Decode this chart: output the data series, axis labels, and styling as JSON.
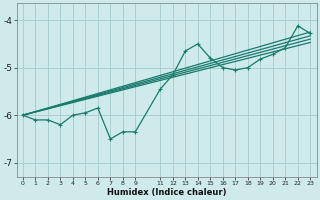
{
  "background_color": "#ceeaea",
  "grid_color": "#aacfcf",
  "line_color": "#1a7a6e",
  "xlabel": "Humidex (Indice chaleur)",
  "ylim": [
    -7.3,
    -3.65
  ],
  "xlim": [
    -0.5,
    23.5
  ],
  "yticks": [
    -7,
    -6,
    -5,
    -4
  ],
  "xtick_positions": [
    0,
    1,
    2,
    3,
    4,
    5,
    6,
    7,
    8,
    9,
    11,
    12,
    13,
    14,
    15,
    16,
    17,
    18,
    19,
    20,
    21,
    22,
    23
  ],
  "xtick_labels": [
    "0",
    "1",
    "2",
    "3",
    "4",
    "5",
    "6",
    "7",
    "8",
    "9",
    "11",
    "12",
    "13",
    "14",
    "15",
    "16",
    "17",
    "18",
    "19",
    "20",
    "21",
    "22",
    "23"
  ],
  "main_series": [
    [
      0,
      -6.0
    ],
    [
      1,
      -6.1
    ],
    [
      2,
      -6.1
    ],
    [
      3,
      -6.2
    ],
    [
      4,
      -6.0
    ],
    [
      5,
      -5.95
    ],
    [
      6,
      -5.85
    ],
    [
      7,
      -6.5
    ],
    [
      8,
      -6.35
    ],
    [
      9,
      -6.35
    ],
    [
      11,
      -5.45
    ],
    [
      12,
      -5.15
    ],
    [
      13,
      -4.65
    ],
    [
      14,
      -4.5
    ],
    [
      15,
      -4.8
    ],
    [
      16,
      -5.0
    ],
    [
      17,
      -5.05
    ],
    [
      18,
      -5.0
    ],
    [
      19,
      -4.82
    ],
    [
      20,
      -4.72
    ],
    [
      21,
      -4.58
    ],
    [
      22,
      -4.12
    ],
    [
      23,
      -4.28
    ]
  ],
  "reg_lines": [
    [
      [
        0,
        -6.0
      ],
      [
        23,
        -4.25
      ]
    ],
    [
      [
        0,
        -6.0
      ],
      [
        23,
        -4.33
      ]
    ],
    [
      [
        0,
        -6.0
      ],
      [
        23,
        -4.4
      ]
    ],
    [
      [
        0,
        -6.0
      ],
      [
        23,
        -4.47
      ]
    ]
  ]
}
